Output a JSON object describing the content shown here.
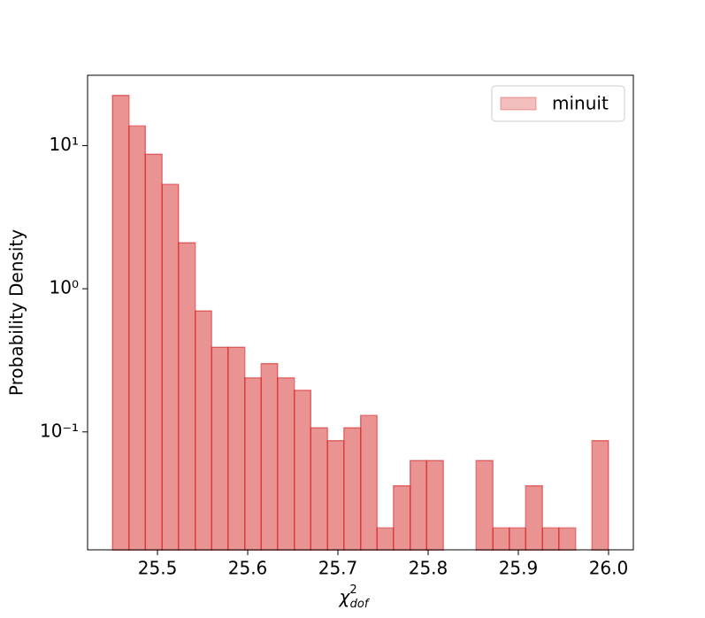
{
  "chart_data": {
    "type": "histogram",
    "xlabel": {
      "symbol": "χ",
      "sup": "2",
      "sub": "dof"
    },
    "ylabel": "Probability Density",
    "bins": [
      25.45,
      25.4683,
      25.4867,
      25.505,
      25.5233,
      25.5417,
      25.56,
      25.5783,
      25.5967,
      25.615,
      25.6333,
      25.6517,
      25.67,
      25.6883,
      25.7067,
      25.725,
      25.7433,
      25.7617,
      25.78,
      25.7983,
      25.8167,
      25.835,
      25.8533,
      25.8717,
      25.89,
      25.9083,
      25.9267,
      25.945,
      25.9633,
      25.9817,
      26.0
    ],
    "series": [
      {
        "name": "minuit",
        "color": "#d62728",
        "values": [
          22.5,
          13.7,
          8.7,
          5.35,
          2.1,
          0.7,
          0.39,
          0.39,
          0.238,
          0.3,
          0.238,
          0.195,
          0.107,
          0.087,
          0.107,
          0.13,
          0.0213,
          0.042,
          0.063,
          0.063,
          0,
          0,
          0.063,
          0.0213,
          0.0213,
          0.042,
          0.0213,
          0.0213,
          0,
          0.087
        ]
      }
    ],
    "xlim": [
      25.4225,
      26.0275
    ],
    "xticks": [
      25.5,
      25.6,
      25.7,
      25.8,
      25.9,
      {
        "value": 26.0,
        "label": "26.0"
      }
    ],
    "ylim": [
      0.015,
      31
    ],
    "log_y": true,
    "yticks": [
      {
        "value": 0.1,
        "label": "10⁻¹"
      },
      {
        "value": 1,
        "label": "10⁰"
      },
      {
        "value": 10,
        "label": "10¹"
      }
    ],
    "legend": "upper right"
  }
}
